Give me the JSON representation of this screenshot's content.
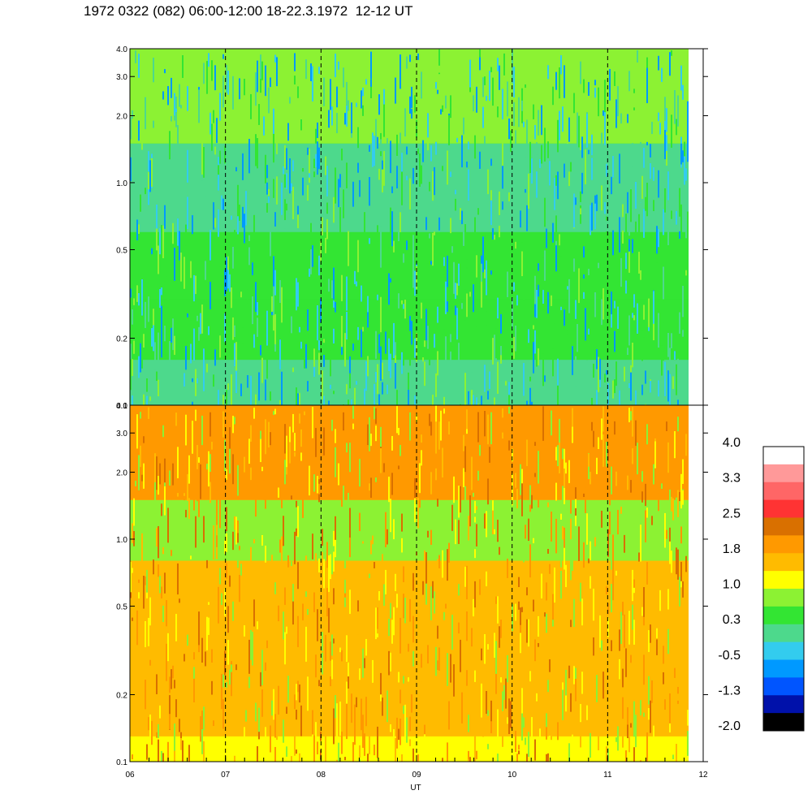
{
  "title": "1972 0322 (082) 06:00-12:00 18-22.3.1972  12-12 UT",
  "chart_data": [
    {
      "type": "heatmap",
      "panel": "top",
      "ylim": [
        0.1,
        4.0
      ],
      "yscale": "log",
      "yticks": [
        "0.1",
        "0.2",
        "0.5",
        "1.0",
        "2.0",
        "3.0",
        "4.0"
      ],
      "ytick_values": [
        0.1,
        0.2,
        0.5,
        1.0,
        2.0,
        3.0,
        4.0
      ],
      "xlim": [
        6,
        12
      ],
      "dashed_vlines": [
        7,
        8,
        9,
        10,
        11
      ],
      "data_end_x": 11.85,
      "dominant_colors": [
        "#33e533",
        "#4dd98c",
        "#8cf233",
        "#33ccee",
        "#0099ff"
      ]
    },
    {
      "type": "heatmap",
      "panel": "bottom",
      "ylim": [
        0.1,
        4.0
      ],
      "yscale": "log",
      "yticks": [
        "0.1",
        "0.2",
        "0.5",
        "1.0",
        "2.0",
        "3.0",
        "4.0"
      ],
      "ytick_values": [
        0.1,
        0.2,
        0.5,
        1.0,
        2.0,
        3.0,
        4.0
      ],
      "xlim": [
        6,
        12
      ],
      "xticks": [
        "06",
        "07",
        "08",
        "09",
        "10",
        "11",
        "12"
      ],
      "xtick_values": [
        6,
        7,
        8,
        9,
        10,
        11,
        12
      ],
      "xlabel": "UT",
      "dashed_vlines": [
        7,
        8,
        9,
        10,
        11
      ],
      "data_end_x": 11.85,
      "dominant_colors": [
        "#ffbb00",
        "#ff9900",
        "#ffff00",
        "#8cf233",
        "#d97000"
      ]
    }
  ],
  "colorbar": {
    "labels": [
      "4.0",
      "3.3",
      "2.5",
      "1.8",
      "1.0",
      "0.3",
      "-0.5",
      "-1.3",
      "-2.0"
    ],
    "colors": [
      "#ffffff",
      "#ff9999",
      "#ff6666",
      "#ff3333",
      "#d97000",
      "#ff9900",
      "#ffbb00",
      "#ffff00",
      "#8cf233",
      "#33e533",
      "#4dd98c",
      "#33ccee",
      "#0099ff",
      "#0055ff",
      "#0011aa",
      "#000000"
    ]
  }
}
